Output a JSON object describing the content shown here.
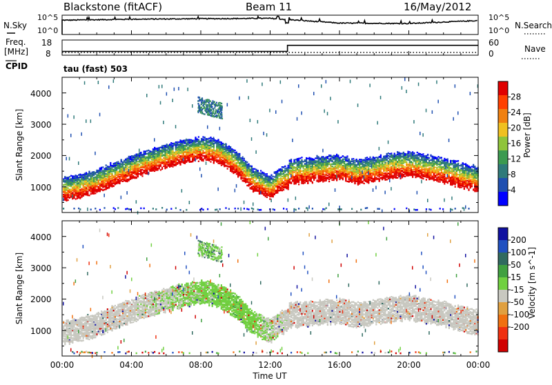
{
  "header": {
    "radar": "Blackstone (fitACF)",
    "beam": "Beam 11",
    "date": "16/May/2012"
  },
  "noise_panel": {
    "left_label": "N.Sky",
    "right_label": "N.Search",
    "top_tick": "10^5",
    "bottom_tick": "10^0"
  },
  "freq_panel": {
    "left_label_1": "Freq.",
    "left_label_2": "[MHz]",
    "left_ticks": [
      "18",
      "8"
    ],
    "right_label": "Nave",
    "right_ticks": [
      "60",
      "0"
    ],
    "cpid_label": "CPID"
  },
  "mode_label": "tau (fast) 503",
  "x_axis": {
    "ticks": [
      "00:00",
      "04:00",
      "08:00",
      "12:00",
      "16:00",
      "20:00",
      "00:00"
    ],
    "title": "Time UT"
  },
  "power_panel": {
    "ylabel": "Slant Range [km]",
    "yticks": [
      "1000",
      "2000",
      "3000",
      "4000"
    ],
    "colorbar_title": "Power [dB]",
    "colorbar_ticks": [
      "4",
      "8",
      "12",
      "16",
      "20",
      "24",
      "28"
    ]
  },
  "velocity_panel": {
    "ylabel": "Slant Range [km]",
    "yticks": [
      "1000",
      "2000",
      "3000",
      "4000"
    ],
    "colorbar_title": "Velocity [m s^-1]",
    "colorbar_ticks": [
      "200",
      "100",
      "50",
      "15",
      "-15",
      "-50",
      "-100",
      "-200"
    ]
  },
  "colors": {
    "power_scale": [
      "#0000ff",
      "#1f4fb0",
      "#2f7a7a",
      "#3c9a50",
      "#8fc43a",
      "#f0c020",
      "#f08010",
      "#ff4000",
      "#e00000"
    ],
    "velocity_scale": [
      "#1010a0",
      "#2050c0",
      "#306a60",
      "#40a040",
      "#70d040",
      "#c8c8c0",
      "#e0a040",
      "#f07010",
      "#f03010",
      "#d00000"
    ]
  },
  "chart_data": [
    {
      "type": "line",
      "title": "",
      "x": [
        "00:00",
        "04:00",
        "08:00",
        "12:00",
        "16:00",
        "20:00",
        "00:00"
      ],
      "series": [
        {
          "name": "N.Sky",
          "values": [
            5000,
            9000,
            12000,
            15000,
            900,
            700,
            4000
          ]
        }
      ],
      "ylim": [
        1,
        100000
      ],
      "log_scale": true
    },
    {
      "type": "line",
      "title": "",
      "x": [
        "00:00",
        "04:00",
        "08:00",
        "12:00",
        "13:00",
        "16:00",
        "20:00",
        "00:00"
      ],
      "series": [
        {
          "name": "Freq.",
          "values": [
            10.5,
            10.5,
            10.5,
            10.5,
            14.5,
            14.5,
            14.5,
            14.5
          ]
        },
        {
          "name": "Nave",
          "values": [
            3,
            3,
            3,
            3,
            3,
            3,
            3,
            3
          ]
        }
      ],
      "ylim": [
        8,
        18
      ]
    },
    {
      "type": "heatmap",
      "title": "",
      "quantity": "Power [dB]",
      "x": [
        "00:00",
        "01:00",
        "02:00",
        "03:00",
        "04:00",
        "05:00",
        "06:00",
        "07:00",
        "08:00",
        "09:00",
        "10:00",
        "11:00",
        "12:00",
        "13:00",
        "14:00",
        "15:00",
        "16:00",
        "17:00",
        "18:00",
        "19:00",
        "20:00",
        "21:00",
        "22:00",
        "23:00",
        "24:00"
      ],
      "main_echo_range_km": [
        950,
        1050,
        1200,
        1450,
        1650,
        1850,
        2000,
        2150,
        2250,
        2150,
        1800,
        1250,
        1000,
        1500,
        1550,
        1600,
        1650,
        1500,
        1600,
        1700,
        1750,
        1650,
        1550,
        1400,
        1250
      ],
      "peak_power_db": [
        26,
        26,
        27,
        27,
        27,
        28,
        28,
        28,
        29,
        28,
        28,
        28,
        27,
        26,
        27,
        27,
        28,
        27,
        27,
        28,
        28,
        28,
        27,
        27,
        26
      ],
      "ylim": [
        180,
        4500
      ],
      "colorbar_range": [
        0,
        30
      ]
    },
    {
      "type": "heatmap",
      "title": "",
      "quantity": "Velocity [m s^-1]",
      "x": [
        "00:00",
        "01:00",
        "02:00",
        "03:00",
        "04:00",
        "05:00",
        "06:00",
        "07:00",
        "08:00",
        "09:00",
        "10:00",
        "11:00",
        "12:00",
        "13:00",
        "14:00",
        "15:00",
        "16:00",
        "17:00",
        "18:00",
        "19:00",
        "20:00",
        "21:00",
        "22:00",
        "23:00",
        "24:00"
      ],
      "main_echo_range_km": [
        950,
        1050,
        1200,
        1450,
        1650,
        1850,
        2000,
        2150,
        2250,
        2150,
        1800,
        1250,
        1000,
        1500,
        1550,
        1600,
        1650,
        1500,
        1600,
        1700,
        1750,
        1650,
        1550,
        1400,
        1250
      ],
      "typical_velocity_ms": [
        0,
        0,
        0,
        0,
        0,
        5,
        10,
        20,
        25,
        30,
        40,
        30,
        10,
        0,
        0,
        0,
        0,
        0,
        0,
        0,
        0,
        0,
        0,
        0,
        0
      ],
      "ylim": [
        180,
        4500
      ],
      "colorbar_range": [
        -250,
        250
      ]
    }
  ]
}
